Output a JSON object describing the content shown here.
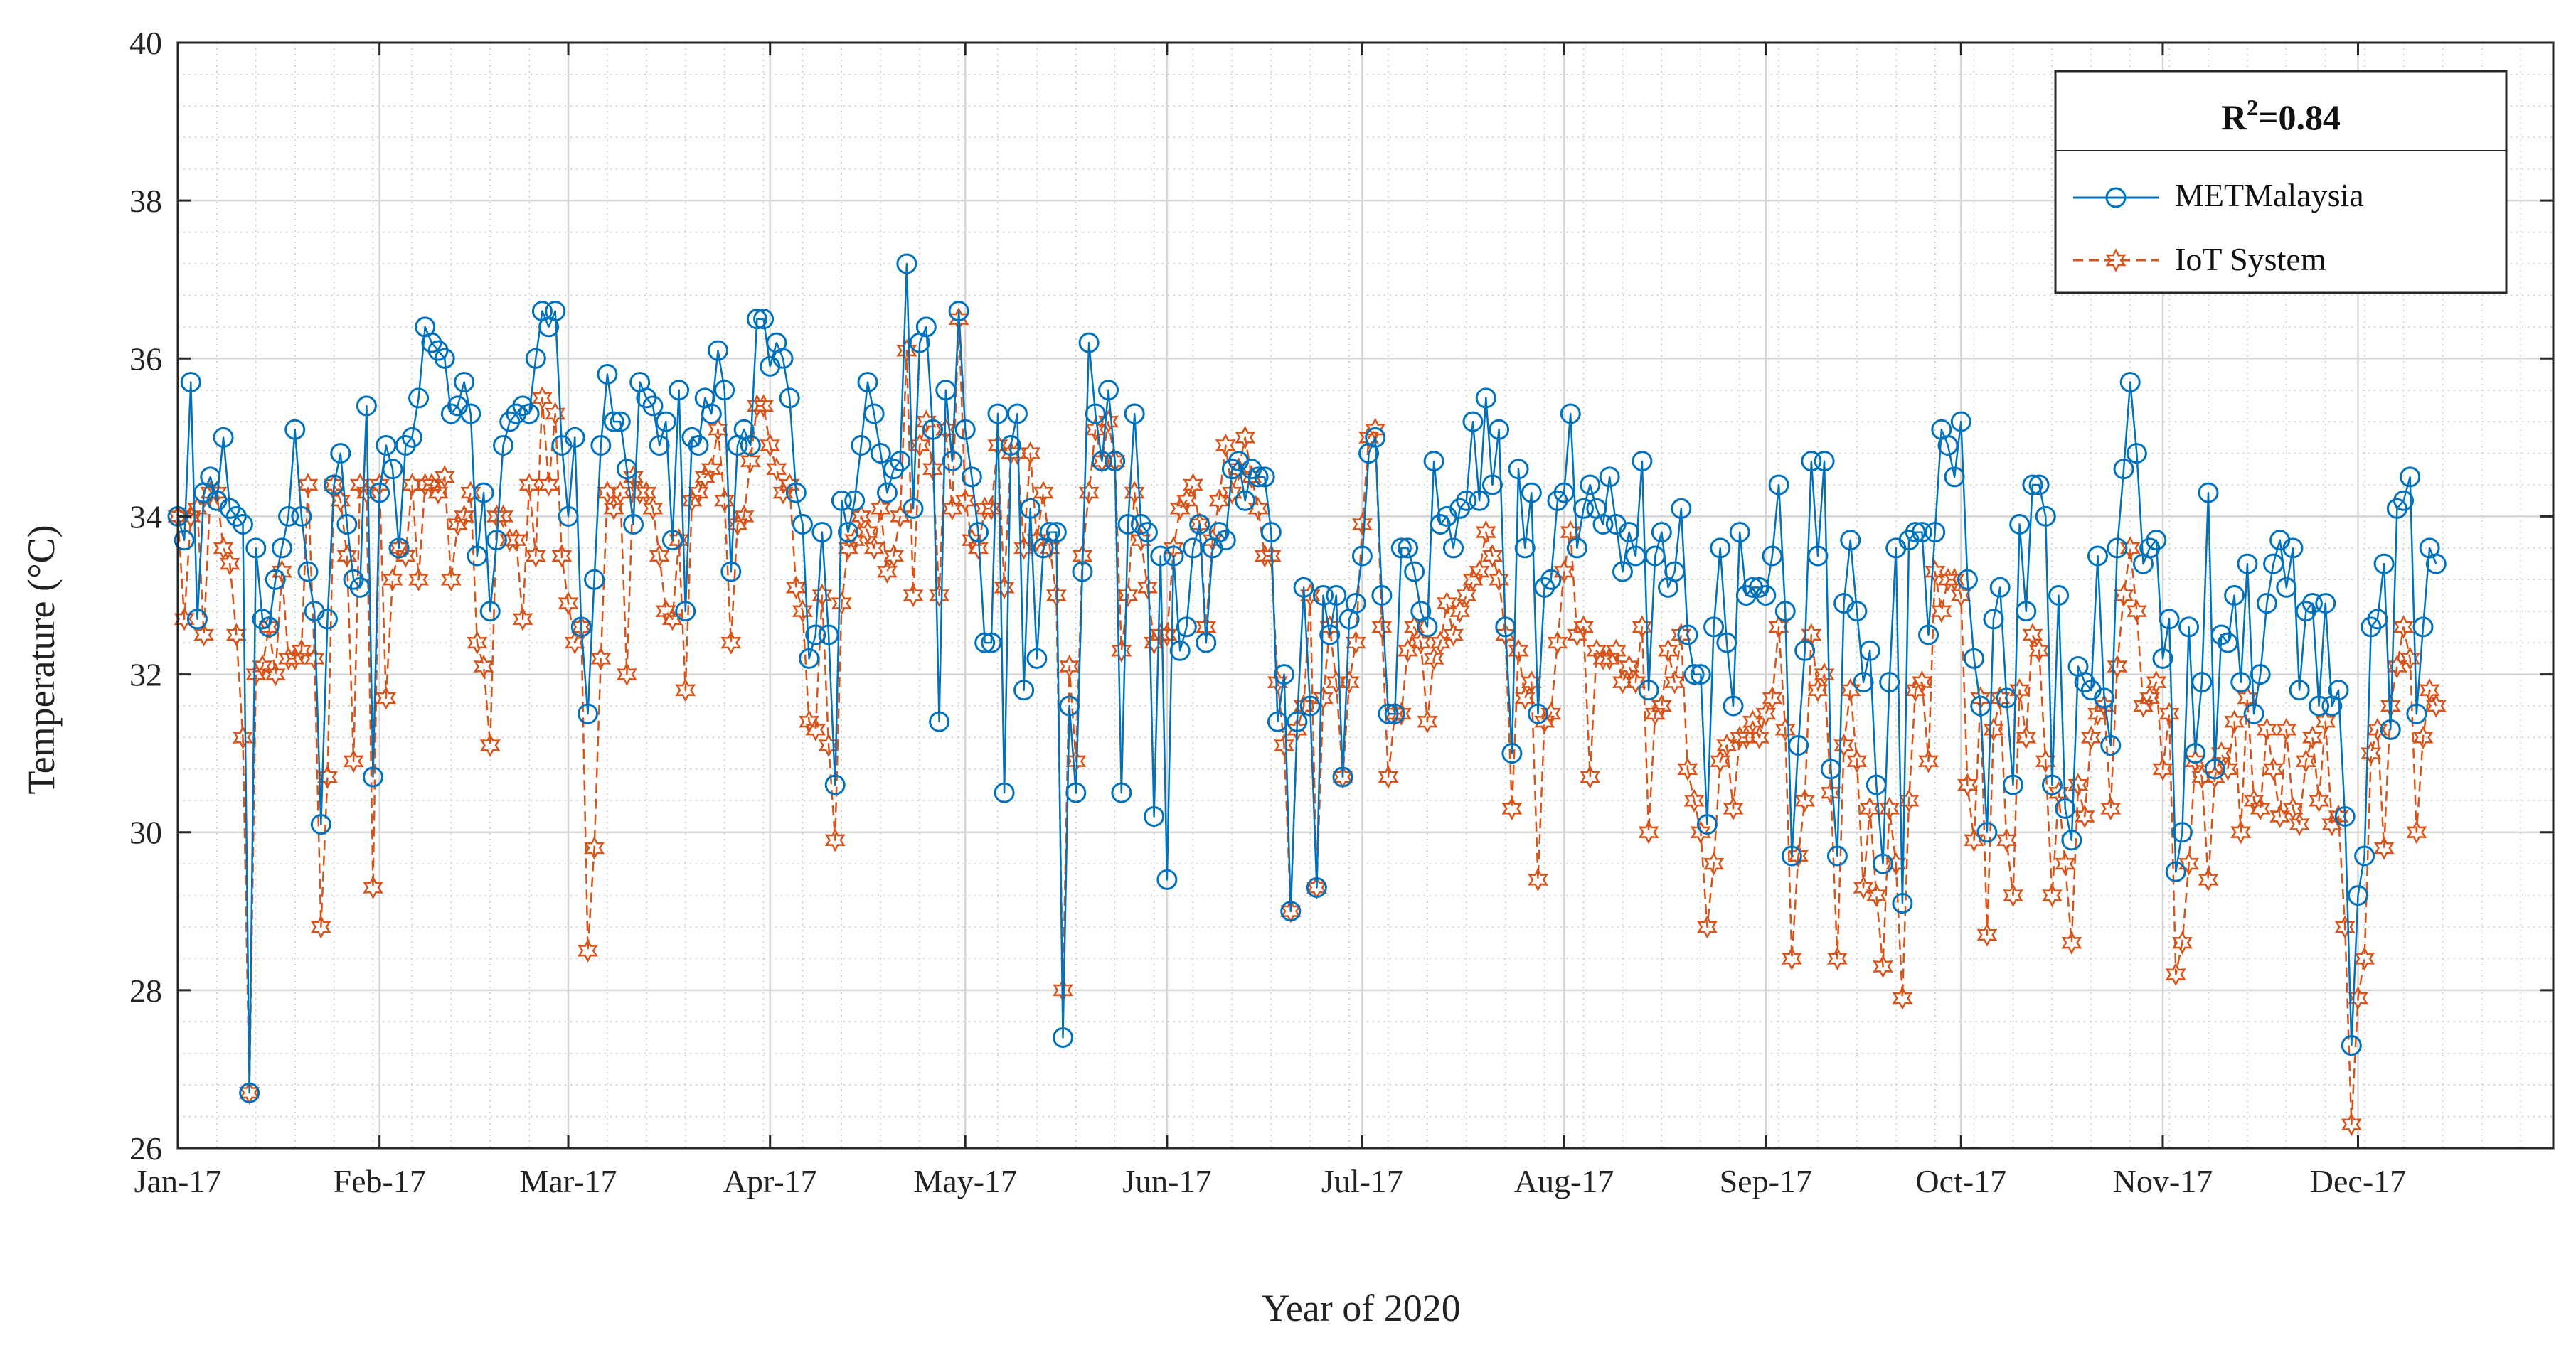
{
  "chart_data": {
    "type": "line",
    "xlabel": "Year of 2020",
    "ylabel": "Temperature (°C)",
    "ylim": [
      26,
      40
    ],
    "yticks": [
      26,
      28,
      30,
      32,
      34,
      36,
      38,
      40
    ],
    "xlim": [
      1,
      366
    ],
    "x_tick_labels": [
      "Jan-17",
      "Feb-17",
      "Mar-17",
      "Apr-17",
      "May-17",
      "Jun-17",
      "Jul-17",
      "Aug-17",
      "Sep-17",
      "Oct-17",
      "Nov-17",
      "Dec-17"
    ],
    "x_tick_days": [
      1,
      32,
      61,
      92,
      122,
      153,
      183,
      214,
      245,
      275,
      306,
      336
    ],
    "grid": true,
    "legend": {
      "location": "top-right",
      "title": "R²=0.84",
      "title_main": "R",
      "title_sup": "2",
      "title_rest": "=0.84"
    },
    "series": [
      {
        "name": "METMalaysia",
        "color": "#0072BD",
        "line_style": "solid",
        "marker": "circle",
        "values": [
          34.0,
          33.7,
          35.7,
          32.7,
          34.3,
          34.5,
          34.2,
          35.0,
          34.1,
          34.0,
          33.9,
          26.7,
          33.6,
          32.7,
          32.6,
          33.2,
          33.6,
          34.0,
          35.1,
          34.0,
          33.3,
          32.8,
          30.1,
          32.7,
          34.4,
          34.8,
          33.9,
          33.2,
          33.1,
          35.4,
          30.7,
          34.3,
          34.9,
          34.6,
          33.6,
          34.9,
          35.0,
          35.5,
          36.4,
          36.2,
          36.1,
          36.0,
          35.3,
          35.4,
          35.7,
          35.3,
          33.5,
          34.3,
          32.8,
          33.7,
          34.9,
          35.2,
          35.3,
          35.4,
          35.3,
          36.0,
          36.6,
          36.4,
          36.6,
          34.9,
          34.0,
          35.0,
          32.6,
          31.5,
          33.2,
          34.9,
          35.8,
          35.2,
          35.2,
          34.6,
          33.9,
          35.7,
          35.5,
          35.4,
          34.9,
          35.2,
          33.7,
          35.6,
          32.8,
          35.0,
          34.9,
          35.5,
          35.3,
          36.1,
          35.6,
          33.3,
          34.9,
          35.1,
          34.9,
          36.5,
          36.5,
          35.9,
          36.2,
          36.0,
          35.5,
          34.3,
          33.9,
          32.2,
          32.5,
          33.8,
          32.5,
          30.6,
          34.2,
          33.8,
          34.2,
          34.9,
          35.7,
          35.3,
          34.8,
          34.3,
          34.6,
          34.7,
          37.2,
          34.1,
          36.2,
          36.4,
          35.1,
          31.4,
          35.6,
          34.7,
          36.6,
          35.1,
          34.5,
          33.8,
          32.4,
          32.4,
          35.3,
          30.5,
          34.9,
          35.3,
          31.8,
          34.1,
          32.2,
          33.6,
          33.8,
          33.8,
          27.4,
          31.6,
          30.5,
          33.3,
          36.2,
          35.3,
          34.7,
          35.6,
          34.7,
          30.5,
          33.9,
          35.3,
          33.9,
          33.8,
          30.2,
          33.5,
          29.4,
          33.5,
          32.3,
          32.6,
          33.6,
          33.9,
          32.4,
          33.6,
          33.8,
          33.7,
          34.6,
          34.7,
          34.2,
          34.6,
          34.5,
          34.5,
          33.8,
          31.4,
          32.0,
          29.0,
          31.4,
          33.1,
          31.6,
          29.3,
          33.0,
          32.5,
          33.0,
          30.7,
          32.7,
          32.9,
          33.5,
          34.8,
          35.0,
          33.0,
          31.5,
          31.5,
          33.6,
          33.6,
          33.3,
          32.8,
          32.6,
          34.7,
          33.9,
          34.0,
          33.6,
          34.1,
          34.2,
          35.2,
          34.2,
          35.5,
          34.4,
          35.1,
          32.6,
          31.0,
          34.6,
          33.6,
          34.3,
          31.5,
          33.1,
          33.2,
          34.2,
          34.3,
          35.3,
          33.6,
          34.1,
          34.4,
          34.1,
          33.9,
          34.5,
          33.9,
          33.3,
          33.8,
          33.5,
          34.7,
          31.8,
          33.5,
          33.8,
          33.1,
          33.3,
          34.1,
          32.5,
          32.0,
          32.0,
          30.1,
          32.6,
          33.6,
          32.4,
          31.6,
          33.8,
          33.0,
          33.1,
          33.1,
          33.0,
          33.5,
          34.4,
          32.8,
          29.7,
          31.1,
          32.3,
          34.7,
          33.5,
          34.7,
          30.8,
          29.7,
          32.9,
          33.7,
          32.8,
          31.9,
          32.3,
          30.6,
          29.6,
          31.9,
          33.6,
          29.1,
          33.7,
          33.8,
          33.8,
          32.5,
          33.8,
          35.1,
          34.9,
          34.5,
          35.2,
          33.2,
          32.2,
          31.6,
          30.0,
          32.7,
          33.1,
          31.7,
          30.6,
          33.9,
          32.8,
          34.4,
          34.4,
          34.0,
          30.6,
          33.0,
          30.3,
          29.9,
          32.1,
          31.9,
          31.8,
          33.5,
          31.7,
          31.1,
          33.6,
          34.6,
          35.7,
          34.8,
          33.4,
          33.6,
          33.7,
          32.2,
          32.7,
          29.5,
          30.0,
          32.6,
          31.0,
          31.9,
          34.3,
          30.8,
          32.5,
          32.4,
          33.0,
          31.9,
          33.4,
          31.5,
          32.0,
          32.9,
          33.4,
          33.7,
          33.1,
          33.6,
          31.8,
          32.8,
          32.9,
          31.6,
          32.9,
          31.6,
          31.8,
          30.2,
          27.3,
          29.2,
          29.7,
          32.6,
          32.7,
          33.4,
          31.3,
          34.1,
          34.2,
          34.5,
          31.5,
          32.6,
          33.6,
          33.4
        ]
      },
      {
        "name": "IoT System",
        "color": "#D95319",
        "line_style": "dashed",
        "marker": "hexagram",
        "values": [
          34.0,
          32.7,
          34.0,
          34.1,
          32.5,
          34.3,
          34.3,
          33.6,
          33.4,
          32.5,
          31.2,
          26.7,
          32.0,
          32.1,
          32.6,
          32.0,
          33.3,
          32.2,
          32.2,
          32.3,
          34.4,
          32.2,
          28.8,
          30.7,
          34.4,
          34.2,
          33.5,
          30.9,
          34.4,
          34.3,
          29.3,
          34.4,
          31.7,
          33.2,
          33.6,
          33.5,
          34.4,
          33.2,
          34.4,
          34.4,
          34.3,
          34.5,
          33.2,
          33.9,
          34.0,
          34.3,
          32.4,
          32.1,
          31.1,
          34.0,
          34.0,
          33.7,
          33.7,
          32.7,
          34.4,
          33.5,
          35.5,
          34.4,
          35.3,
          33.5,
          32.9,
          32.4,
          32.6,
          28.5,
          29.8,
          32.2,
          34.3,
          34.1,
          34.3,
          32.0,
          34.5,
          34.3,
          34.3,
          34.1,
          33.5,
          32.8,
          32.7,
          33.7,
          31.8,
          34.2,
          34.3,
          34.5,
          34.6,
          35.1,
          34.2,
          32.4,
          33.9,
          34.0,
          34.7,
          35.4,
          35.4,
          34.9,
          34.6,
          34.3,
          34.4,
          33.1,
          32.8,
          31.4,
          31.3,
          33.0,
          31.1,
          29.9,
          32.9,
          33.6,
          33.7,
          34.0,
          33.8,
          33.6,
          34.1,
          33.3,
          33.5,
          34.0,
          36.1,
          33.0,
          34.9,
          35.2,
          34.6,
          33.0,
          35.1,
          34.1,
          36.5,
          34.2,
          33.7,
          33.6,
          34.1,
          34.1,
          34.9,
          33.1,
          34.8,
          34.8,
          33.6,
          34.8,
          33.7,
          34.3,
          33.6,
          33.0,
          28.0,
          32.1,
          30.9,
          33.5,
          34.3,
          35.1,
          34.7,
          35.2,
          34.7,
          32.3,
          33.0,
          34.3,
          33.7,
          33.1,
          32.4,
          32.5,
          32.5,
          33.6,
          34.1,
          34.2,
          34.4,
          33.9,
          32.6,
          33.7,
          34.2,
          34.9,
          34.3,
          34.6,
          35.0,
          34.5,
          34.1,
          33.5,
          33.5,
          31.9,
          31.1,
          29.0,
          31.3,
          31.6,
          33.0,
          29.3,
          31.7,
          32.6,
          31.9,
          30.7,
          31.9,
          32.4,
          33.9,
          35.0,
          35.1,
          32.6,
          30.7,
          31.5,
          31.5,
          32.3,
          32.6,
          32.4,
          31.4,
          32.2,
          32.4,
          32.9,
          32.5,
          32.8,
          33.0,
          33.2,
          33.3,
          33.8,
          33.5,
          33.2,
          32.5,
          30.3,
          32.3,
          31.7,
          31.9,
          29.4,
          31.4,
          31.5,
          32.4,
          33.3,
          33.8,
          32.5,
          32.6,
          30.7,
          32.3,
          32.2,
          32.2,
          32.3,
          31.9,
          32.1,
          31.9,
          32.6,
          30.0,
          31.5,
          31.6,
          32.3,
          31.9,
          32.5,
          30.8,
          30.4,
          30.0,
          28.8,
          29.6,
          30.9,
          31.1,
          30.3,
          31.2,
          31.2,
          31.4,
          31.2,
          31.5,
          31.7,
          32.6,
          31.3,
          28.4,
          29.7,
          30.4,
          32.5,
          31.8,
          32.0,
          30.5,
          28.4,
          31.1,
          31.8,
          30.9,
          29.3,
          30.3,
          29.2,
          28.3,
          30.3,
          29.6,
          27.9,
          30.4,
          31.8,
          31.9,
          30.9,
          33.3,
          32.8,
          33.2,
          33.2,
          33.0,
          30.6,
          29.9,
          31.7,
          28.7,
          31.3,
          31.7,
          29.9,
          29.2,
          31.8,
          31.2,
          32.5,
          32.3,
          30.9,
          29.2,
          30.5,
          29.6,
          28.6,
          30.6,
          30.2,
          31.2,
          31.5,
          31.6,
          30.3,
          32.1,
          33.0,
          33.6,
          32.8,
          31.6,
          31.7,
          31.9,
          30.8,
          31.5,
          28.2,
          28.6,
          29.6,
          30.9,
          30.7,
          29.4,
          30.7,
          31.0,
          30.8,
          31.4,
          30.0,
          31.7,
          30.4,
          30.3,
          31.3,
          30.8,
          30.2,
          31.3,
          30.3,
          30.1,
          30.9,
          31.2,
          30.4,
          31.4,
          30.1,
          30.2,
          28.8,
          26.3,
          27.9,
          28.4,
          31.0,
          31.3,
          29.8,
          31.6,
          32.1,
          32.6,
          32.2,
          30.0,
          31.2,
          31.8,
          31.6
        ]
      }
    ]
  }
}
